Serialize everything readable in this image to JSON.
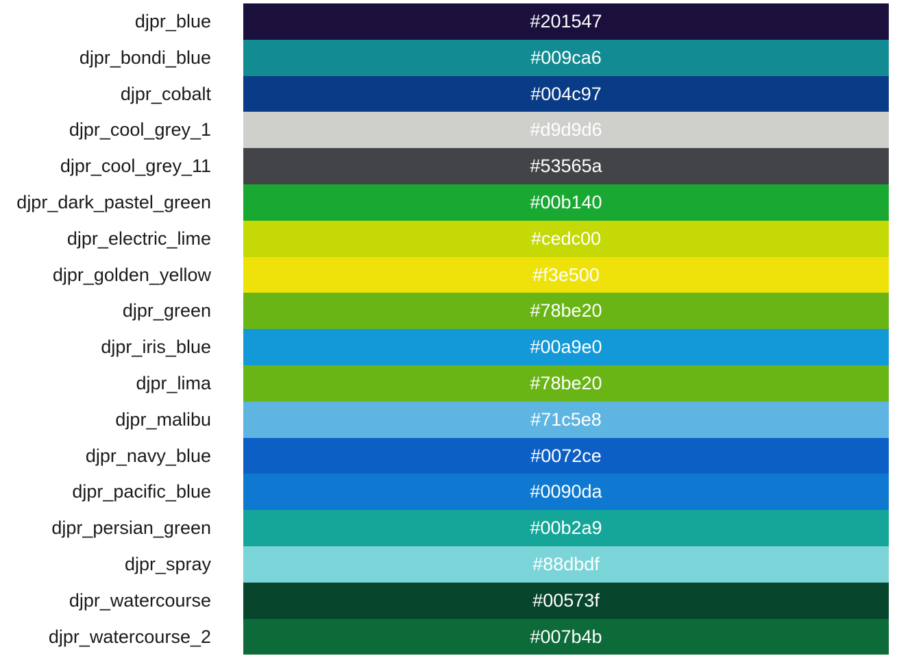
{
  "chart_data": {
    "type": "table",
    "title": "",
    "xlabel": "",
    "ylabel": "",
    "grid": false,
    "legend": "none",
    "rows": [
      {
        "name": "djpr_blue",
        "hex": "#201547",
        "fill": "#1b0f3c"
      },
      {
        "name": "djpr_bondi_blue",
        "hex": "#009ca6",
        "fill": "#128c92"
      },
      {
        "name": "djpr_cobalt",
        "hex": "#004c97",
        "fill": "#093b86"
      },
      {
        "name": "djpr_cool_grey_1",
        "hex": "#d9d9d6",
        "fill": "#cfd0cc"
      },
      {
        "name": "djpr_cool_grey_11",
        "hex": "#53565a",
        "fill": "#434448"
      },
      {
        "name": "djpr_dark_pastel_green",
        "hex": "#00b140",
        "fill": "#19a933"
      },
      {
        "name": "djpr_electric_lime",
        "hex": "#cedc00",
        "fill": "#c4d905"
      },
      {
        "name": "djpr_golden_yellow",
        "hex": "#f3e500",
        "fill": "#efe20a"
      },
      {
        "name": "djpr_green",
        "hex": "#78be20",
        "fill": "#69b516"
      },
      {
        "name": "djpr_iris_blue",
        "hex": "#00a9e0",
        "fill": "#1499d8"
      },
      {
        "name": "djpr_lima",
        "hex": "#78be20",
        "fill": "#69b516"
      },
      {
        "name": "djpr_malibu",
        "hex": "#71c5e8",
        "fill": "#5fb5e2"
      },
      {
        "name": "djpr_navy_blue",
        "hex": "#0072ce",
        "fill": "#0c5fc5"
      },
      {
        "name": "djpr_pacific_blue",
        "hex": "#0090da",
        "fill": "#0f79d1"
      },
      {
        "name": "djpr_persian_green",
        "hex": "#00b2a9",
        "fill": "#15a699"
      },
      {
        "name": "djpr_spray",
        "hex": "#88dbdf",
        "fill": "#7bd4d7"
      },
      {
        "name": "djpr_watercourse",
        "hex": "#00573f",
        "fill": "#07452d"
      },
      {
        "name": "djpr_watercourse_2",
        "hex": "#007b4b",
        "fill": "#0d6b3a"
      }
    ]
  }
}
